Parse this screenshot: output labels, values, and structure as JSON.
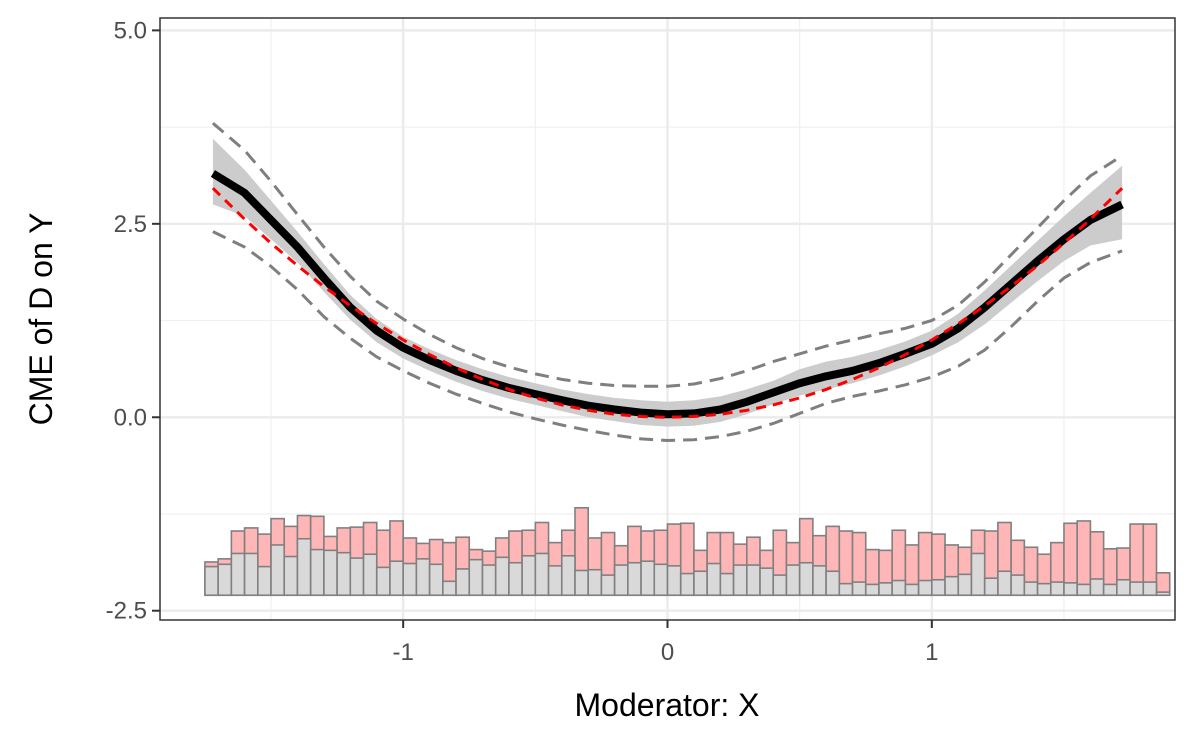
{
  "chart_data": {
    "type": "line",
    "title": "",
    "xlabel": "Moderator: X",
    "ylabel": "CME of D on Y",
    "xlim": [
      -1.92,
      1.92
    ],
    "ylim": [
      -2.62,
      5.16
    ],
    "x_ticks": [
      -1,
      0,
      1
    ],
    "x_tick_labels": [
      "-1",
      "0",
      "1"
    ],
    "y_ticks": [
      -2.5,
      0.0,
      2.5,
      5.0
    ],
    "y_tick_labels": [
      "-2.5",
      "0.0",
      "2.5",
      "5.0"
    ],
    "grid": true,
    "legend": "none",
    "colors": {
      "estimate": "#000000",
      "band": "#cccccc",
      "ci": "#7f7f7f",
      "true": "#ff0000",
      "hist_treated": "#ffb6b6",
      "hist_control": "#d9d9d9",
      "hist_edge": "#808080"
    },
    "series": [
      {
        "role": "estimate",
        "x": [
          -1.72,
          -1.6,
          -1.5,
          -1.4,
          -1.3,
          -1.2,
          -1.1,
          -1.0,
          -0.9,
          -0.8,
          -0.7,
          -0.6,
          -0.5,
          -0.4,
          -0.3,
          -0.2,
          -0.1,
          0.0,
          0.1,
          0.2,
          0.3,
          0.4,
          0.5,
          0.6,
          0.7,
          0.8,
          0.9,
          1.0,
          1.1,
          1.2,
          1.3,
          1.4,
          1.5,
          1.6,
          1.72
        ],
        "y": [
          3.15,
          2.9,
          2.55,
          2.2,
          1.8,
          1.42,
          1.12,
          0.9,
          0.74,
          0.6,
          0.48,
          0.38,
          0.3,
          0.22,
          0.15,
          0.1,
          0.06,
          0.04,
          0.05,
          0.1,
          0.2,
          0.32,
          0.44,
          0.53,
          0.6,
          0.7,
          0.82,
          0.95,
          1.15,
          1.42,
          1.72,
          2.02,
          2.3,
          2.55,
          2.75
        ]
      },
      {
        "role": "band_upper",
        "x": [
          -1.72,
          -1.6,
          -1.5,
          -1.4,
          -1.3,
          -1.2,
          -1.1,
          -1.0,
          -0.9,
          -0.8,
          -0.7,
          -0.6,
          -0.5,
          -0.4,
          -0.3,
          -0.2,
          -0.1,
          0.0,
          0.1,
          0.2,
          0.3,
          0.4,
          0.5,
          0.6,
          0.7,
          0.8,
          0.9,
          1.0,
          1.1,
          1.2,
          1.3,
          1.4,
          1.5,
          1.6,
          1.72
        ],
        "y": [
          3.6,
          3.2,
          2.8,
          2.4,
          1.98,
          1.58,
          1.27,
          1.04,
          0.88,
          0.74,
          0.62,
          0.52,
          0.44,
          0.36,
          0.3,
          0.25,
          0.22,
          0.2,
          0.22,
          0.27,
          0.36,
          0.47,
          0.62,
          0.72,
          0.78,
          0.87,
          0.98,
          1.12,
          1.34,
          1.64,
          1.96,
          2.28,
          2.6,
          2.9,
          3.25
        ]
      },
      {
        "role": "band_lower",
        "x": [
          -1.72,
          -1.6,
          -1.5,
          -1.4,
          -1.3,
          -1.2,
          -1.1,
          -1.0,
          -0.9,
          -0.8,
          -0.7,
          -0.6,
          -0.5,
          -0.4,
          -0.3,
          -0.2,
          -0.1,
          0.0,
          0.1,
          0.2,
          0.3,
          0.4,
          0.5,
          0.6,
          0.7,
          0.8,
          0.9,
          1.0,
          1.1,
          1.2,
          1.3,
          1.4,
          1.5,
          1.6,
          1.72
        ],
        "y": [
          2.75,
          2.6,
          2.3,
          2.0,
          1.62,
          1.26,
          0.97,
          0.76,
          0.6,
          0.46,
          0.34,
          0.24,
          0.16,
          0.08,
          0.0,
          -0.05,
          -0.1,
          -0.12,
          -0.11,
          -0.06,
          0.04,
          0.17,
          0.28,
          0.36,
          0.44,
          0.54,
          0.66,
          0.8,
          0.97,
          1.2,
          1.48,
          1.76,
          2.02,
          2.22,
          2.3
        ]
      },
      {
        "role": "ci_upper",
        "x": [
          -1.72,
          -1.6,
          -1.5,
          -1.4,
          -1.3,
          -1.2,
          -1.1,
          -1.0,
          -0.9,
          -0.8,
          -0.7,
          -0.6,
          -0.5,
          -0.4,
          -0.3,
          -0.2,
          -0.1,
          0.0,
          0.1,
          0.2,
          0.3,
          0.4,
          0.5,
          0.6,
          0.7,
          0.8,
          0.9,
          1.0,
          1.1,
          1.2,
          1.3,
          1.4,
          1.5,
          1.6,
          1.72
        ],
        "y": [
          3.8,
          3.45,
          3.05,
          2.62,
          2.2,
          1.82,
          1.5,
          1.27,
          1.07,
          0.9,
          0.76,
          0.65,
          0.56,
          0.49,
          0.44,
          0.41,
          0.4,
          0.4,
          0.43,
          0.5,
          0.6,
          0.72,
          0.82,
          0.92,
          1.0,
          1.08,
          1.15,
          1.25,
          1.45,
          1.75,
          2.1,
          2.45,
          2.8,
          3.12,
          3.38
        ]
      },
      {
        "role": "ci_lower",
        "x": [
          -1.72,
          -1.6,
          -1.5,
          -1.4,
          -1.3,
          -1.2,
          -1.1,
          -1.0,
          -0.9,
          -0.8,
          -0.7,
          -0.6,
          -0.5,
          -0.4,
          -0.3,
          -0.2,
          -0.1,
          0.0,
          0.1,
          0.2,
          0.3,
          0.4,
          0.5,
          0.6,
          0.7,
          0.8,
          0.9,
          1.0,
          1.1,
          1.2,
          1.3,
          1.4,
          1.5,
          1.6,
          1.72
        ],
        "y": [
          2.4,
          2.2,
          1.95,
          1.65,
          1.3,
          1.02,
          0.78,
          0.6,
          0.44,
          0.3,
          0.18,
          0.07,
          -0.02,
          -0.1,
          -0.17,
          -0.23,
          -0.28,
          -0.3,
          -0.29,
          -0.25,
          -0.18,
          -0.08,
          0.05,
          0.18,
          0.27,
          0.34,
          0.42,
          0.52,
          0.66,
          0.87,
          1.17,
          1.5,
          1.8,
          2.0,
          2.15
        ]
      },
      {
        "role": "true",
        "x": [
          -1.72,
          -1.6,
          -1.5,
          -1.4,
          -1.3,
          -1.2,
          -1.1,
          -1.0,
          -0.9,
          -0.8,
          -0.7,
          -0.6,
          -0.5,
          -0.4,
          -0.3,
          -0.2,
          -0.1,
          0.0,
          0.1,
          0.2,
          0.3,
          0.4,
          0.5,
          0.6,
          0.7,
          0.8,
          0.9,
          1.0,
          1.1,
          1.2,
          1.3,
          1.4,
          1.5,
          1.6,
          1.72
        ],
        "y": [
          2.96,
          2.56,
          2.25,
          1.96,
          1.69,
          1.44,
          1.21,
          1.0,
          0.81,
          0.64,
          0.49,
          0.36,
          0.25,
          0.16,
          0.09,
          0.04,
          0.01,
          0.0,
          0.01,
          0.04,
          0.09,
          0.16,
          0.25,
          0.36,
          0.49,
          0.64,
          0.81,
          1.0,
          1.21,
          1.44,
          1.69,
          1.96,
          2.25,
          2.56,
          2.96
        ]
      }
    ],
    "histogram": {
      "baseline": -2.3,
      "x_start": -1.75,
      "bin_width": 0.05,
      "total_heights": [
        0.43,
        0.47,
        0.83,
        0.87,
        0.79,
        0.99,
        0.89,
        1.03,
        1.02,
        0.76,
        0.87,
        0.88,
        0.94,
        0.84,
        0.96,
        0.74,
        0.67,
        0.72,
        0.68,
        0.75,
        0.59,
        0.57,
        0.74,
        0.83,
        0.84,
        0.94,
        0.68,
        0.84,
        1.13,
        0.74,
        0.81,
        0.64,
        0.89,
        0.83,
        0.84,
        0.92,
        0.93,
        0.58,
        0.81,
        0.81,
        0.66,
        0.75,
        0.58,
        0.84,
        0.68,
        0.99,
        0.77,
        0.89,
        0.83,
        0.81,
        0.59,
        0.58,
        0.84,
        0.65,
        0.81,
        0.79,
        0.65,
        0.62,
        0.84,
        0.83,
        0.94,
        0.71,
        0.62,
        0.53,
        0.68,
        0.93,
        0.96,
        0.82,
        0.6,
        0.61,
        0.92,
        0.92,
        0.29
      ],
      "control_heights": [
        0.37,
        0.4,
        0.54,
        0.54,
        0.37,
        0.65,
        0.5,
        0.73,
        0.59,
        0.58,
        0.55,
        0.48,
        0.53,
        0.36,
        0.44,
        0.41,
        0.47,
        0.4,
        0.18,
        0.34,
        0.46,
        0.39,
        0.49,
        0.42,
        0.51,
        0.54,
        0.38,
        0.51,
        0.32,
        0.33,
        0.26,
        0.39,
        0.42,
        0.44,
        0.4,
        0.38,
        0.28,
        0.31,
        0.41,
        0.28,
        0.39,
        0.39,
        0.35,
        0.26,
        0.39,
        0.42,
        0.38,
        0.31,
        0.15,
        0.17,
        0.14,
        0.16,
        0.19,
        0.14,
        0.19,
        0.2,
        0.24,
        0.27,
        0.54,
        0.22,
        0.31,
        0.26,
        0.17,
        0.15,
        0.17,
        0.16,
        0.14,
        0.21,
        0.14,
        0.2,
        0.17,
        0.17,
        0.04
      ]
    }
  }
}
